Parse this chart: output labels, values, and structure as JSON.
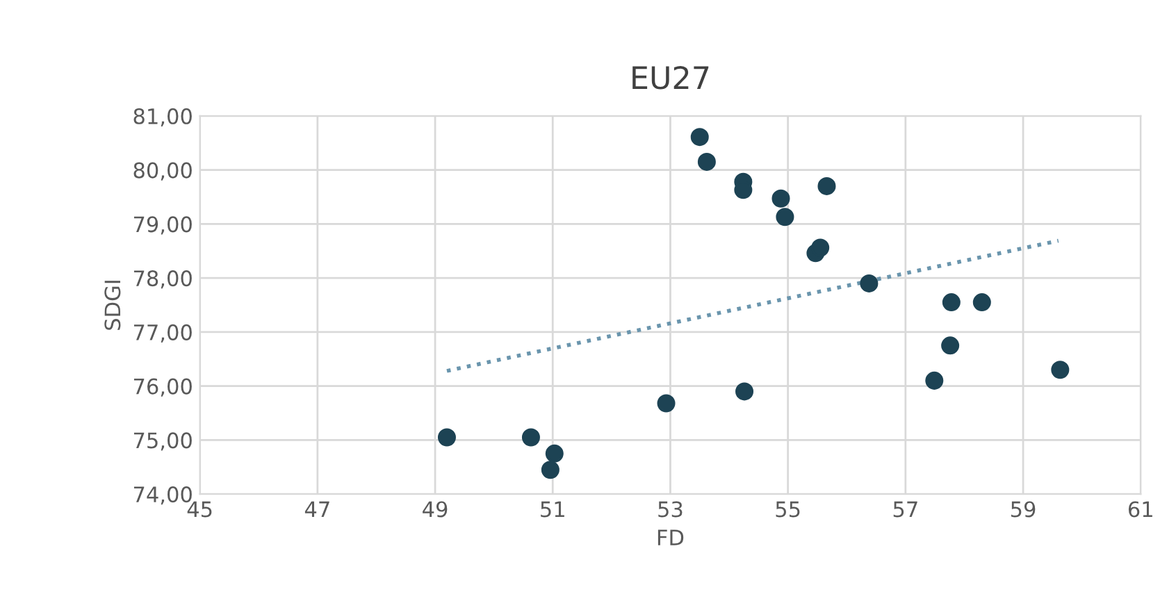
{
  "chart_data": {
    "type": "scatter",
    "title": "EU27",
    "xlabel": "FD",
    "ylabel": "SDGI",
    "xlim": [
      45,
      61
    ],
    "xticks": [
      45,
      47,
      49,
      51,
      53,
      55,
      57,
      59,
      61
    ],
    "ylim": [
      74,
      81
    ],
    "yticks": [
      {
        "value": 74,
        "label": "74,00"
      },
      {
        "value": 75,
        "label": "75,00"
      },
      {
        "value": 76,
        "label": "76,00"
      },
      {
        "value": 77,
        "label": "77,00"
      },
      {
        "value": 78,
        "label": "78,00"
      },
      {
        "value": 79,
        "label": "79,00"
      },
      {
        "value": 80,
        "label": "80,00"
      },
      {
        "value": 81,
        "label": "81,00"
      }
    ],
    "grid": true,
    "marker": "circle",
    "series": [
      {
        "color": "#1d4354",
        "x": [
          49.2,
          50.63,
          51.03,
          50.96,
          52.93,
          53.5,
          53.62,
          54.24,
          54.24,
          54.88,
          54.95,
          55.66,
          55.47,
          55.55,
          54.26,
          56.38,
          57.49,
          57.76,
          57.78,
          58.3,
          59.63
        ],
        "values": [
          75.05,
          75.05,
          74.75,
          74.45,
          75.68,
          80.61,
          80.15,
          79.78,
          79.63,
          79.47,
          79.13,
          79.7,
          78.46,
          78.56,
          75.9,
          77.9,
          76.1,
          76.75,
          77.55,
          77.55,
          76.3
        ]
      },
      {
        "type": "line",
        "color": "#6a95ad",
        "line_style": "dotted",
        "marker": "none",
        "x": [
          49.2,
          59.6
        ],
        "values": [
          76.28,
          78.69
        ]
      }
    ]
  }
}
